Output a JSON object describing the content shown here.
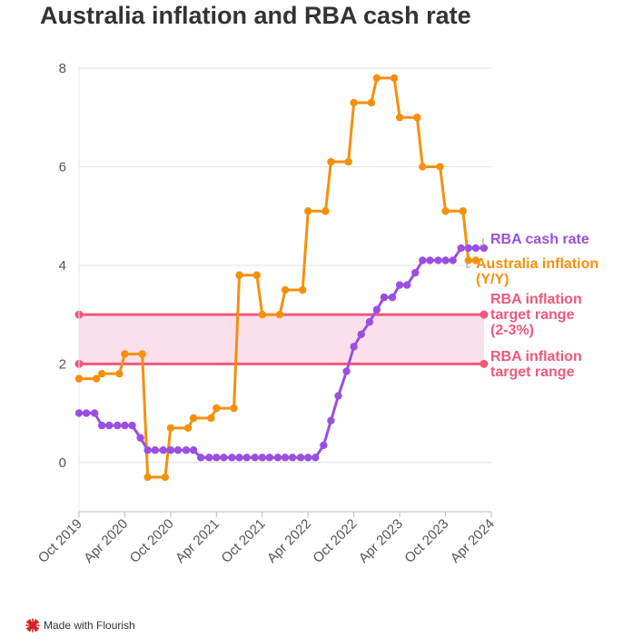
{
  "chart_data": {
    "type": "line",
    "title": "Australia inflation and RBA cash rate",
    "ylim": [
      -1,
      8
    ],
    "yticks": [
      0,
      2,
      4,
      6,
      8
    ],
    "xlim": [
      2019.75,
      2024.25
    ],
    "xticks": [
      {
        "value": 2019.75,
        "label": "Oct 2019"
      },
      {
        "value": 2020.25,
        "label": "Apr 2020"
      },
      {
        "value": 2020.75,
        "label": "Oct 2020"
      },
      {
        "value": 2021.25,
        "label": "Apr 2021"
      },
      {
        "value": 2021.75,
        "label": "Oct 2021"
      },
      {
        "value": 2022.25,
        "label": "Apr 2022"
      },
      {
        "value": 2022.75,
        "label": "Oct 2022"
      },
      {
        "value": 2023.25,
        "label": "Apr 2023"
      },
      {
        "value": 2023.75,
        "label": "Oct 2023"
      },
      {
        "value": 2024.25,
        "label": "Apr 2024"
      }
    ],
    "series": [
      {
        "name": "RBA cash rate",
        "color": "#9b4fe0",
        "step": false,
        "x": [
          2019.75,
          2019.83,
          2019.92,
          2020.0,
          2020.08,
          2020.17,
          2020.25,
          2020.33,
          2020.42,
          2020.5,
          2020.58,
          2020.67,
          2020.75,
          2020.83,
          2020.92,
          2021.0,
          2021.08,
          2021.17,
          2021.25,
          2021.33,
          2021.42,
          2021.5,
          2021.58,
          2021.67,
          2021.75,
          2021.83,
          2021.92,
          2022.0,
          2022.08,
          2022.17,
          2022.25,
          2022.33,
          2022.42,
          2022.5,
          2022.58,
          2022.67,
          2022.75,
          2022.83,
          2022.92,
          2023.0,
          2023.08,
          2023.17,
          2023.25,
          2023.33,
          2023.42,
          2023.5,
          2023.58,
          2023.67,
          2023.75,
          2023.83,
          2023.92,
          2024.0,
          2024.08,
          2024.17
        ],
        "y": [
          1.0,
          1.0,
          1.0,
          0.75,
          0.75,
          0.75,
          0.75,
          0.75,
          0.5,
          0.25,
          0.25,
          0.25,
          0.25,
          0.25,
          0.25,
          0.25,
          0.1,
          0.1,
          0.1,
          0.1,
          0.1,
          0.1,
          0.1,
          0.1,
          0.1,
          0.1,
          0.1,
          0.1,
          0.1,
          0.1,
          0.1,
          0.1,
          0.35,
          0.85,
          1.35,
          1.85,
          2.35,
          2.6,
          2.85,
          3.1,
          3.35,
          3.35,
          3.6,
          3.6,
          3.85,
          4.1,
          4.1,
          4.1,
          4.1,
          4.1,
          4.35,
          4.35,
          4.35,
          4.35
        ]
      },
      {
        "name": "Australia inflation (Y/Y)",
        "color": "#f5900c",
        "step": true,
        "x": [
          2019.75,
          2020.0,
          2020.25,
          2020.5,
          2020.75,
          2021.0,
          2021.25,
          2021.5,
          2021.75,
          2022.0,
          2022.25,
          2022.5,
          2022.75,
          2023.0,
          2023.25,
          2023.5,
          2023.75,
          2024.0
        ],
        "y": [
          1.7,
          1.8,
          2.2,
          -0.3,
          0.7,
          0.9,
          1.1,
          3.8,
          3.0,
          3.5,
          5.1,
          6.1,
          7.3,
          7.8,
          7.0,
          6.0,
          5.1,
          4.1
        ]
      }
    ],
    "band": {
      "name": "RBA inflation target range (2-3%)",
      "low": 2,
      "high": 3,
      "color": "#f0587a",
      "fill": "#fbe0ec"
    },
    "labels": [
      {
        "text": "RBA cash rate",
        "series": 0,
        "color": "#9b4fe0"
      },
      {
        "text": "Australia inflation (Y/Y)",
        "series": 1,
        "color": "#f5900c"
      },
      {
        "text": "RBA inflation target range (2-3%)",
        "color": "#f0587a"
      },
      {
        "text": "RBA inflation target range",
        "color": "#f0587a"
      }
    ]
  },
  "footer": {
    "text": "Made with Flourish",
    "icon": "flourish-logo-icon"
  }
}
